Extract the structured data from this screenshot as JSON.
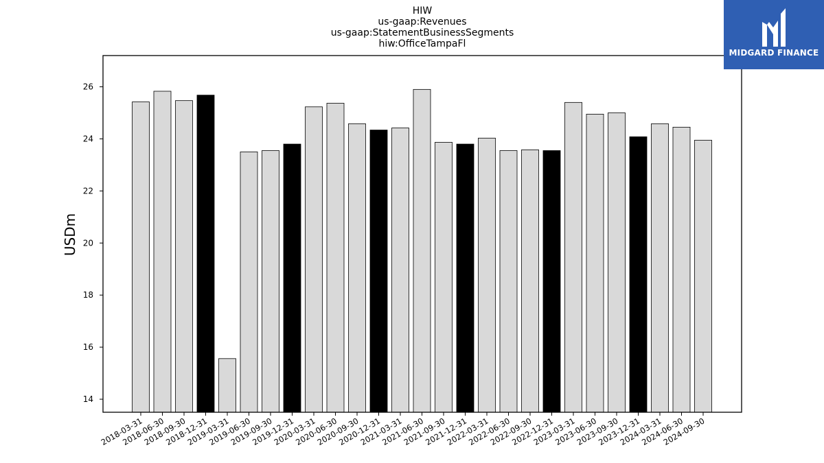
{
  "titles": [
    "HIW",
    "us-gaap:Revenues",
    "us-gaap:StatementBusinessSegments",
    "hiw:OfficeTampaFl"
  ],
  "logo": {
    "text": "MIDGARD FINANCE",
    "color": "#2f5fb3"
  },
  "chart_data": {
    "type": "bar",
    "ylabel": "USDm",
    "xlabel": "",
    "ylim": [
      13.5,
      27.2
    ],
    "yticks": [
      14,
      16,
      18,
      20,
      22,
      24,
      26
    ],
    "grid": false,
    "colors": {
      "q4": "#000000",
      "other": "#d9d9d9",
      "edge": "#000000"
    },
    "categories": [
      "2018-03-31",
      "2018-06-30",
      "2018-09-30",
      "2018-12-31",
      "2019-03-31",
      "2019-06-30",
      "2019-09-30",
      "2019-12-31",
      "2020-03-31",
      "2020-06-30",
      "2020-09-30",
      "2020-12-31",
      "2021-03-31",
      "2021-06-30",
      "2021-09-30",
      "2021-12-31",
      "2022-03-31",
      "2022-06-30",
      "2022-09-30",
      "2022-12-31",
      "2023-03-31",
      "2023-06-30",
      "2023-09-30",
      "2023-12-31",
      "2024-03-31",
      "2024-06-30",
      "2024-09-30"
    ],
    "values": [
      25.42,
      25.83,
      25.47,
      25.68,
      15.56,
      23.5,
      23.55,
      23.8,
      25.23,
      25.37,
      24.58,
      24.34,
      24.42,
      25.9,
      23.87,
      23.8,
      24.03,
      23.55,
      23.58,
      23.55,
      25.4,
      24.95,
      25.0,
      24.08,
      24.58,
      24.45,
      23.95
    ]
  }
}
